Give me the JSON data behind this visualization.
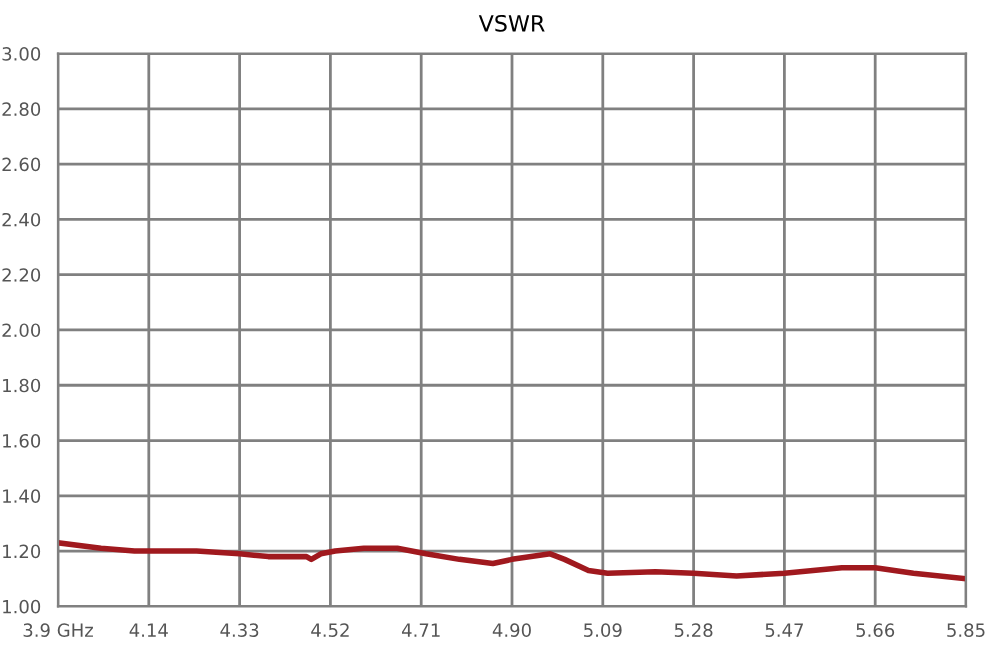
{
  "chart_data": {
    "type": "line",
    "title": "VSWR",
    "x": [
      3.95,
      4.04,
      4.11,
      4.19,
      4.24,
      4.33,
      4.39,
      4.47,
      4.48,
      4.5,
      4.53,
      4.59,
      4.66,
      4.72,
      4.79,
      4.86,
      4.9,
      4.94,
      4.98,
      5.01,
      5.06,
      5.1,
      5.2,
      5.28,
      5.37,
      5.47,
      5.59,
      5.66,
      5.74,
      5.85
    ],
    "series": [
      {
        "color": "#a0191e",
        "values": [
          1.23,
          1.21,
          1.2,
          1.2,
          1.2,
          1.19,
          1.18,
          1.18,
          1.17,
          1.19,
          1.2,
          1.21,
          1.21,
          1.19,
          1.17,
          1.155,
          1.17,
          1.18,
          1.19,
          1.17,
          1.13,
          1.12,
          1.125,
          1.12,
          1.11,
          1.12,
          1.14,
          1.14,
          1.12,
          1.1
        ]
      }
    ],
    "xlim": [
      3.95,
      5.85
    ],
    "xticks": [
      {
        "value": 3.95,
        "label": "3.9 GHz"
      },
      4.14,
      4.33,
      4.52,
      4.71,
      {
        "value": 4.9,
        "label": "4.90"
      },
      5.09,
      5.28,
      5.47,
      5.66,
      5.85
    ],
    "ylim": [
      1.0,
      3.0
    ],
    "yticks": [
      {
        "value": 1.0,
        "label": "1.00"
      },
      {
        "value": 1.2,
        "label": "1.20"
      },
      {
        "value": 1.4,
        "label": "1.40"
      },
      {
        "value": 1.6,
        "label": "1.60"
      },
      {
        "value": 1.8,
        "label": "1.80"
      },
      {
        "value": 2.0,
        "label": "2.00"
      },
      {
        "value": 2.2,
        "label": "2.20"
      },
      {
        "value": 2.4,
        "label": "2.40"
      },
      {
        "value": 2.6,
        "label": "2.60"
      },
      {
        "value": 2.8,
        "label": "2.80"
      },
      {
        "value": 3.0,
        "label": "3.00"
      }
    ],
    "grid": true,
    "legend": false,
    "marker": "none",
    "line_style": "solid"
  }
}
